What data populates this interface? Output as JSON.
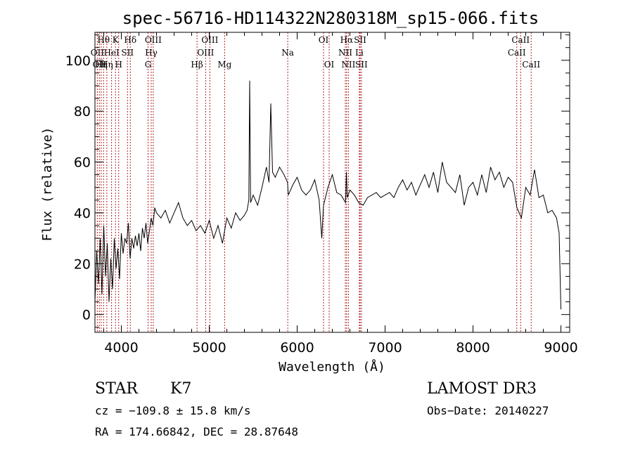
{
  "chart_data": {
    "type": "line",
    "title": "spec-56716-HD114322N280318M_sp15-066.fits",
    "xlabel": "Wavelength (Å)",
    "ylabel": "Flux (relative)",
    "xlim": [
      3700,
      9100
    ],
    "ylim": [
      -7,
      111
    ],
    "x_ticks": [
      4000,
      5000,
      6000,
      7000,
      8000,
      9000
    ],
    "y_ticks": [
      0,
      20,
      40,
      60,
      80,
      100
    ],
    "spectrum_color": "#000000",
    "line_color": "#b22222",
    "series": [
      {
        "x": [
          3700,
          3720,
          3740,
          3760,
          3780,
          3800,
          3820,
          3840,
          3860,
          3880,
          3900,
          3920,
          3940,
          3960,
          3980,
          4000,
          4020,
          4040,
          4060,
          4080,
          4100,
          4120,
          4140,
          4160,
          4180,
          4200,
          4220,
          4240,
          4260,
          4280,
          4300,
          4320,
          4340,
          4360,
          4380,
          4400,
          4450,
          4500,
          4550,
          4600,
          4650,
          4700,
          4750,
          4800,
          4850,
          4900,
          4950,
          5000,
          5050,
          5100,
          5150,
          5200,
          5250,
          5300,
          5350,
          5400,
          5430,
          5450,
          5460,
          5470,
          5500,
          5550,
          5600,
          5650,
          5680,
          5700,
          5720,
          5750,
          5800,
          5850,
          5890,
          5900,
          5950,
          6000,
          6050,
          6100,
          6150,
          6200,
          6250,
          6280,
          6300,
          6350,
          6400,
          6450,
          6500,
          6550,
          6560,
          6570,
          6600,
          6650,
          6700,
          6750,
          6800,
          6850,
          6900,
          6950,
          7000,
          7050,
          7100,
          7150,
          7200,
          7250,
          7300,
          7350,
          7400,
          7450,
          7500,
          7550,
          7600,
          7650,
          7700,
          7750,
          7800,
          7850,
          7900,
          7950,
          8000,
          8050,
          8100,
          8150,
          8200,
          8250,
          8300,
          8350,
          8400,
          8450,
          8500,
          8550,
          8600,
          8650,
          8700,
          8750,
          8800,
          8850,
          8900,
          8950,
          8980,
          9000
        ],
        "y": [
          5,
          25,
          12,
          30,
          8,
          35,
          15,
          28,
          5,
          22,
          10,
          30,
          18,
          26,
          14,
          32,
          24,
          30,
          28,
          36,
          22,
          30,
          26,
          31,
          27,
          32,
          25,
          34,
          30,
          36,
          28,
          33,
          38,
          35,
          42,
          40,
          38,
          41,
          36,
          40,
          44,
          38,
          35,
          37,
          33,
          35,
          32,
          37,
          30,
          35,
          28,
          38,
          34,
          40,
          37,
          39,
          41,
          45,
          92,
          44,
          47,
          43,
          50,
          58,
          52,
          83,
          56,
          54,
          58,
          55,
          52,
          47,
          51,
          54,
          49,
          47,
          49,
          53,
          45,
          30,
          43,
          50,
          55,
          48,
          47,
          44,
          56,
          46,
          49,
          47,
          44,
          43,
          46,
          47,
          48,
          46,
          47,
          48,
          46,
          50,
          53,
          49,
          52,
          47,
          51,
          55,
          50,
          56,
          48,
          60,
          52,
          50,
          48,
          55,
          43,
          50,
          52,
          47,
          55,
          48,
          58,
          53,
          56,
          50,
          54,
          52,
          42,
          38,
          50,
          47,
          57,
          46,
          47,
          40,
          41,
          38,
          32,
          2
        ]
      }
    ],
    "spectral_lines": [
      {
        "wl": 3727,
        "label": "OII",
        "row": 1
      },
      {
        "wl": 3750,
        "label": "OII",
        "row": 2
      },
      {
        "wl": 3771,
        "label": "Hη",
        "row": 2
      },
      {
        "wl": 3798,
        "label": "Hθ",
        "row": 0
      },
      {
        "wl": 3835,
        "label": "Hη",
        "row": 2
      },
      {
        "wl": 3889,
        "label": "HeI",
        "row": 1
      },
      {
        "wl": 3934,
        "label": "K",
        "row": 0
      },
      {
        "wl": 3970,
        "label": "H",
        "row": 2
      },
      {
        "wl": 4070,
        "label": "SII",
        "row": 1
      },
      {
        "wl": 4102,
        "label": "Hδ",
        "row": 0
      },
      {
        "wl": 4304,
        "label": "G",
        "row": 2
      },
      {
        "wl": 4340,
        "label": "Hγ",
        "row": 1
      },
      {
        "wl": 4363,
        "label": "OIII",
        "row": 0
      },
      {
        "wl": 4861,
        "label": "Hβ",
        "row": 2
      },
      {
        "wl": 4959,
        "label": "OIII",
        "row": 1
      },
      {
        "wl": 5007,
        "label": "OIII",
        "row": 0
      },
      {
        "wl": 5175,
        "label": "Mg",
        "row": 2
      },
      {
        "wl": 5893,
        "label": "Na",
        "row": 1
      },
      {
        "wl": 6300,
        "label": "OI",
        "row": 0
      },
      {
        "wl": 6364,
        "label": "OI",
        "row": 2
      },
      {
        "wl": 6548,
        "label": "NII",
        "row": 1
      },
      {
        "wl": 6563,
        "label": "Hα",
        "row": 0
      },
      {
        "wl": 6583,
        "label": "NII",
        "row": 2
      },
      {
        "wl": 6707,
        "label": "Li",
        "row": 1
      },
      {
        "wl": 6716,
        "label": "SII",
        "row": 0
      },
      {
        "wl": 6731,
        "label": "SII",
        "row": 2
      },
      {
        "wl": 8498,
        "label": "CaII",
        "row": 1
      },
      {
        "wl": 8542,
        "label": "CaII",
        "row": 0
      },
      {
        "wl": 8662,
        "label": "CaII",
        "row": 2
      }
    ]
  },
  "info": {
    "class": "STAR",
    "subclass": "K7",
    "survey": "LAMOST DR3",
    "cz": "cz = −109.8 ± 15.8 km/s",
    "obs_date": "Obs−Date: 20140227",
    "coords": "RA = 174.66842, DEC =  28.87648"
  }
}
